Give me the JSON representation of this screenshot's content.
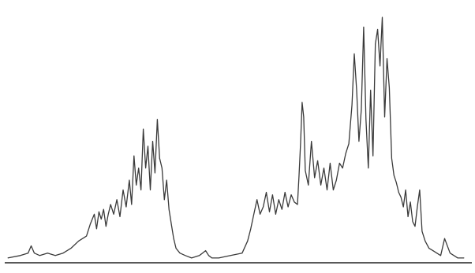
{
  "chart_data": {
    "type": "line",
    "title": "",
    "xlabel": "",
    "ylabel": "",
    "xlim": [
      0,
      600
    ],
    "ylim": [
      0,
      100
    ],
    "grid": false,
    "legend": "none",
    "colors": {
      "line": "#3a3a3a",
      "axis": "#222222",
      "background": "#ffffff"
    },
    "series": [
      {
        "x": [
          4,
          20,
          30,
          34,
          38,
          45,
          55,
          65,
          75,
          85,
          95,
          105,
          110,
          115,
          118,
          121,
          124,
          127,
          130,
          133,
          136,
          140,
          144,
          148,
          152,
          156,
          160,
          163,
          166,
          169,
          172,
          175,
          178,
          181,
          184,
          187,
          190,
          193,
          196,
          199,
          202,
          205,
          208,
          211,
          214,
          217,
          220,
          225,
          232,
          240,
          250,
          258,
          262,
          266,
          275,
          290,
          305,
          312,
          316,
          320,
          324,
          328,
          332,
          336,
          340,
          344,
          348,
          352,
          356,
          360,
          364,
          368,
          372,
          376,
          378,
          380,
          382,
          384,
          386,
          390,
          394,
          398,
          402,
          406,
          410,
          414,
          418,
          422,
          426,
          430,
          434,
          438,
          442,
          446,
          449,
          452,
          455,
          458,
          461,
          464,
          467,
          470,
          473,
          476,
          479,
          482,
          485,
          488,
          491,
          494,
          497,
          500,
          503,
          506,
          509,
          512,
          515,
          518,
          521,
          524,
          527,
          530,
          533,
          536,
          540,
          545,
          550,
          555,
          560,
          565,
          572,
          582,
          590
        ],
        "values": [
          1,
          2,
          3,
          6,
          3,
          2,
          3,
          2,
          3,
          5,
          8,
          10,
          15,
          19,
          13,
          20,
          17,
          21,
          14,
          19,
          23,
          19,
          25,
          18,
          29,
          22,
          33,
          23,
          43,
          31,
          38,
          29,
          54,
          38,
          47,
          29,
          49,
          36,
          58,
          42,
          38,
          25,
          33,
          21,
          15,
          9,
          5,
          3,
          2,
          1,
          2,
          4,
          2,
          1,
          1,
          2,
          3,
          8,
          13,
          19,
          25,
          19,
          22,
          28,
          20,
          27,
          19,
          25,
          21,
          28,
          22,
          27,
          24,
          23,
          35,
          48,
          65,
          59,
          37,
          31,
          49,
          34,
          41,
          31,
          38,
          29,
          40,
          29,
          33,
          40,
          38,
          44,
          48,
          64,
          85,
          70,
          49,
          62,
          96,
          58,
          38,
          70,
          43,
          89,
          95,
          80,
          100,
          59,
          83,
          71,
          42,
          35,
          32,
          28,
          26,
          22,
          29,
          18,
          24,
          16,
          14,
          22,
          29,
          12,
          8,
          5,
          4,
          3,
          2,
          9,
          3,
          1,
          1
        ]
      }
    ]
  }
}
